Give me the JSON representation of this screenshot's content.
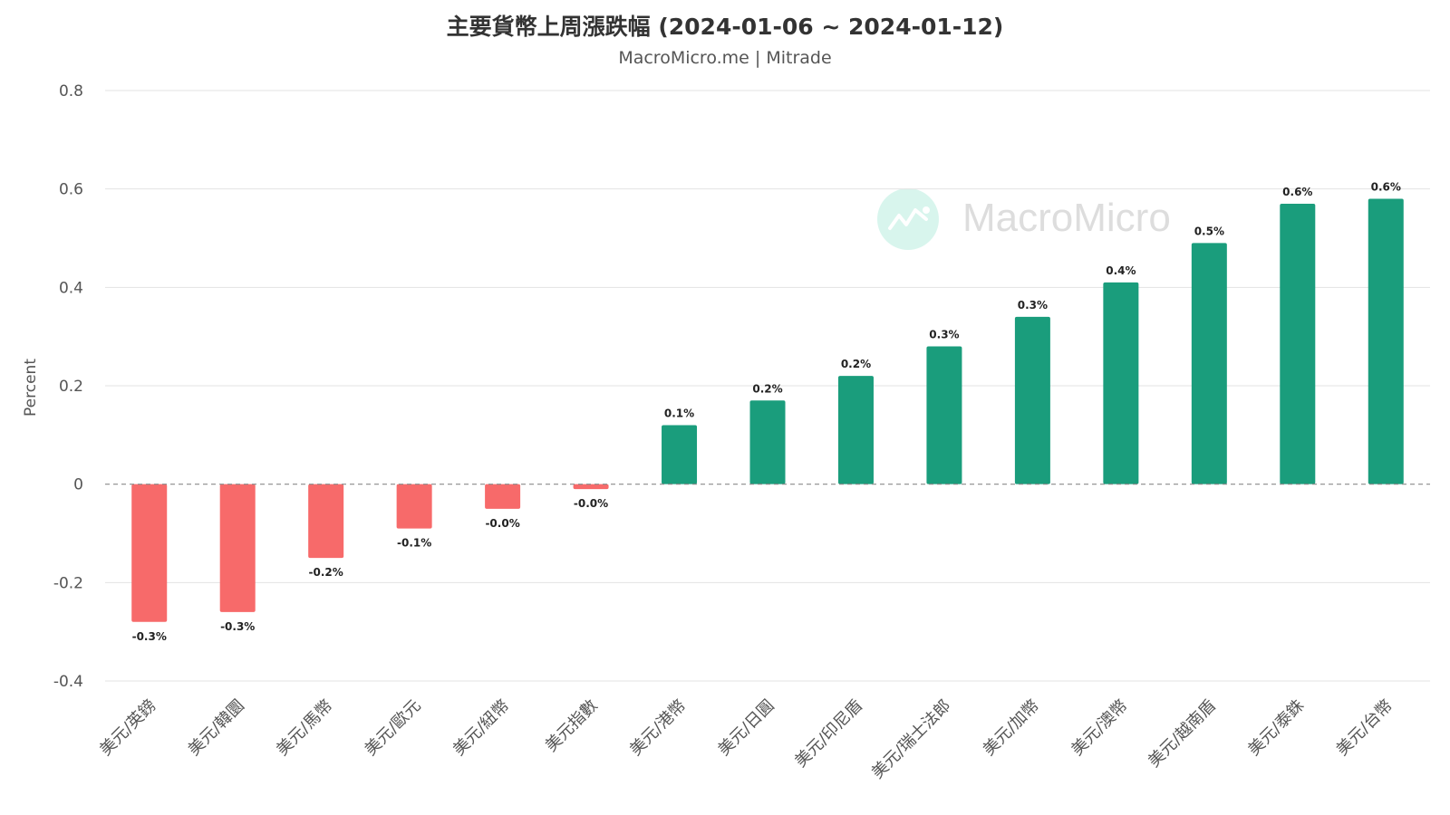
{
  "chart_data": {
    "type": "bar",
    "title": "主要貨幣上周漲跌幅 (2024-01-06 ~ 2024-01-12)",
    "subtitle": "MacroMicro.me | Mitrade",
    "watermark": "MacroMicro",
    "xlabel": "",
    "ylabel": "Percent",
    "ylim": [
      -0.4,
      0.8
    ],
    "yticks": [
      "0.8",
      "0.6",
      "0.4",
      "0.2",
      "0",
      "-0.2",
      "-0.4"
    ],
    "ytick_values": [
      0.8,
      0.6,
      0.4,
      0.2,
      0,
      -0.2,
      -0.4
    ],
    "categories": [
      "美元/英鎊",
      "美元/韓圜",
      "美元/馬幣",
      "美元/歐元",
      "美元/紐幣",
      "美元指數",
      "美元/港幣",
      "美元/日圓",
      "美元/印尼盾",
      "美元/瑞士法郎",
      "美元/加幣",
      "美元/澳幣",
      "美元/越南盾",
      "美元/泰銖",
      "美元/台幣"
    ],
    "values": [
      -0.28,
      -0.26,
      -0.15,
      -0.09,
      -0.05,
      -0.01,
      0.12,
      0.17,
      0.22,
      0.28,
      0.34,
      0.41,
      0.49,
      0.57,
      0.58
    ],
    "data_labels": [
      "-0.3%",
      "-0.3%",
      "-0.2%",
      "-0.1%",
      "-0.0%",
      "-0.0%",
      "0.1%",
      "0.2%",
      "0.2%",
      "0.3%",
      "0.3%",
      "0.4%",
      "0.5%",
      "0.6%",
      "0.6%"
    ],
    "colors": {
      "positive": "#1a9d7c",
      "negative": "#f76a6a",
      "grid": "#e3e3e3",
      "zero_line": "#8a8a8a"
    }
  }
}
